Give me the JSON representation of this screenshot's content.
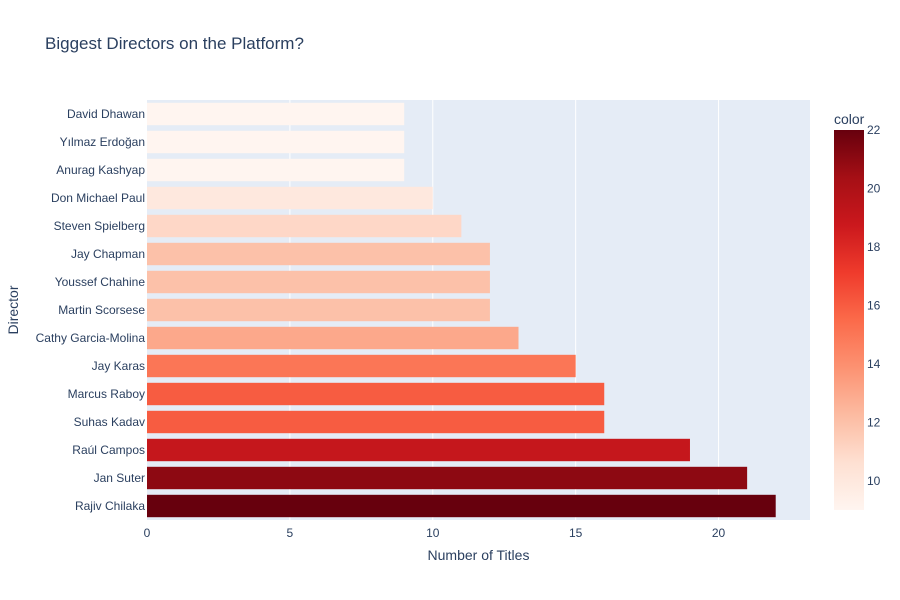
{
  "chart_data": {
    "type": "bar",
    "orientation": "horizontal",
    "title": "Biggest Directors on the Platform?",
    "xlabel": "Number of Titles",
    "ylabel": "Director",
    "categories": [
      "David Dhawan",
      "Yılmaz Erdoğan",
      "Anurag Kashyap",
      "Don Michael Paul",
      "Steven Spielberg",
      "Jay Chapman",
      "Youssef Chahine",
      "Martin Scorsese",
      "Cathy Garcia-Molina",
      "Jay Karas",
      "Marcus Raboy",
      "Suhas Kadav",
      "Raúl Campos",
      "Jan Suter",
      "Rajiv Chilaka"
    ],
    "values": [
      9,
      9,
      9,
      10,
      11,
      12,
      12,
      12,
      13,
      15,
      16,
      16,
      19,
      21,
      22
    ],
    "xlim": [
      0,
      23.2
    ],
    "xticks": [
      0,
      5,
      10,
      15,
      20
    ],
    "grid": true,
    "colorbar": {
      "title": "color",
      "range": [
        9,
        22
      ],
      "ticks": [
        10,
        12,
        14,
        16,
        18,
        20,
        22
      ],
      "colorscale": "Reds"
    },
    "colors": {
      "plot_bg": "#e5ecf6",
      "text": "#2a3f5f",
      "scale": [
        "#fff5f0",
        "#fee0d2",
        "#fcbba1",
        "#fc9272",
        "#fb6a4a",
        "#ef3b2c",
        "#cb181d",
        "#a50f15",
        "#67000d"
      ]
    }
  }
}
